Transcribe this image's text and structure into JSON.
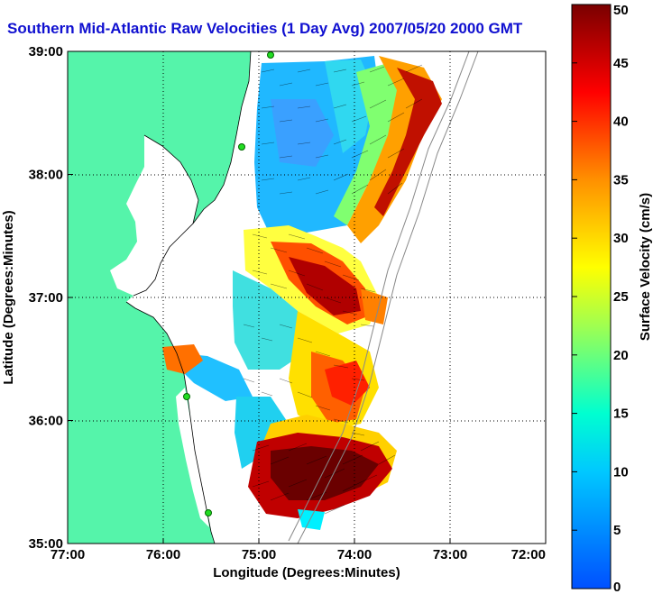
{
  "title": "Southern Mid-Atlantic Raw Velocities (1 Day Avg) 2007/05/20 2000 GMT",
  "x_axis": {
    "label": "Longitude (Degrees:Minutes)",
    "ticks": [
      "77:00",
      "76:00",
      "75:00",
      "74:00",
      "73:00",
      "72:00"
    ]
  },
  "y_axis": {
    "label": "Latitude (Degrees:Minutes)",
    "ticks": [
      "39:00",
      "38:00",
      "37:00",
      "36:00",
      "35:00"
    ]
  },
  "colorbar": {
    "label": "Surface Velocity (cm/s)",
    "ticks": [
      "0",
      "5",
      "10",
      "15",
      "20",
      "25",
      "30",
      "35",
      "40",
      "45",
      "50"
    ],
    "min": 0,
    "max": 50
  },
  "colors": {
    "land": "#55f4aa",
    "water": "#ffffff",
    "title": "#1010d0",
    "station": "#22dd22"
  }
}
